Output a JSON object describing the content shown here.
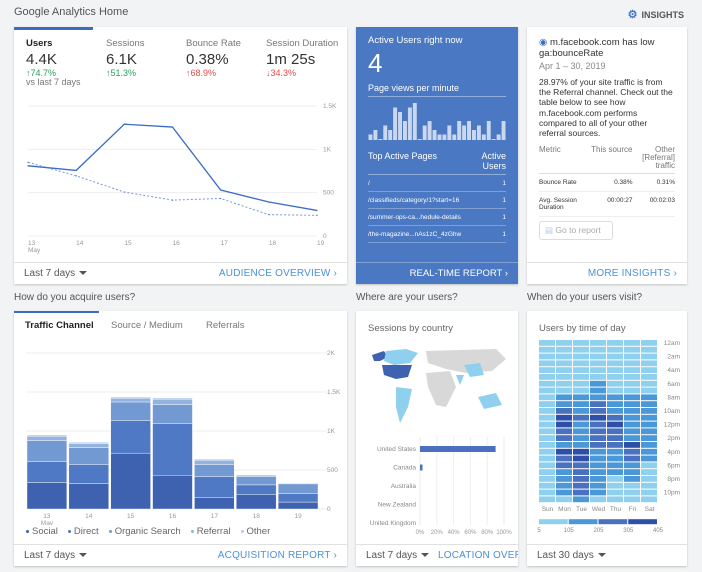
{
  "header": {
    "title": "Google Analytics Home",
    "insights": "INSIGHTS",
    "insights_icon": "insights-icon"
  },
  "overview": {
    "metrics": [
      {
        "label": "Users",
        "value": "4.4K",
        "delta": "↑74.7%",
        "dir": "up"
      },
      {
        "label": "Sessions",
        "value": "6.1K",
        "delta": "↑51.3%",
        "dir": "up"
      },
      {
        "label": "Bounce Rate",
        "value": "0.38%",
        "delta": "↑68.9%",
        "dir": "dn"
      },
      {
        "label": "Session Duration",
        "value": "1m 25s",
        "delta": "↓34.3%",
        "dir": "dn"
      }
    ],
    "compare": "vs last 7 days",
    "footer_left": "Last 7 days",
    "footer_right": "AUDIENCE OVERVIEW",
    "chart_data": {
      "type": "line",
      "x": [
        "13",
        "14",
        "15",
        "16",
        "17",
        "18",
        "19"
      ],
      "x_sublabel": "May",
      "yticks": [
        "1.5K",
        "1K",
        "500",
        "0"
      ],
      "ylim": [
        0,
        1500
      ],
      "grid": true,
      "series": [
        {
          "style": "solid",
          "values": [
            810,
            757,
            1290,
            1257,
            530,
            392,
            295
          ]
        },
        {
          "style": "dotted",
          "values": [
            850,
            694,
            507,
            414,
            433,
            246,
            239
          ]
        }
      ],
      "color": "#3b6cc2"
    }
  },
  "realtime": {
    "title": "Active Users right now",
    "count": "4",
    "pv_title": "Page views per minute",
    "pageviews": [
      1,
      2,
      0,
      3,
      2,
      7,
      6,
      4,
      7,
      8,
      0,
      3,
      4,
      2,
      1,
      1,
      3,
      1,
      4,
      3,
      4,
      2,
      3,
      1,
      4,
      0,
      1,
      4
    ],
    "pages_title": "Top Active Pages",
    "users_title": "Active Users",
    "pages": [
      {
        "path": "/",
        "users": "1"
      },
      {
        "path": "/classifieds/category/1?start=16",
        "users": "1"
      },
      {
        "path": "/summer-ops-ca...hedule-details",
        "users": "1"
      },
      {
        "path": "/the-magazine...nAs1zC_4zGhw",
        "users": "1"
      }
    ],
    "footer": "REAL-TIME REPORT"
  },
  "insight": {
    "headline": "m.facebook.com has low ga:bounceRate",
    "date": "Apr 1 – 30, 2019",
    "body": "28.97% of your site traffic is from the Referral channel. Check out the table below to see how m.facebook.com performs compared to all of your other referral sources.",
    "cols": [
      "Metric",
      "This source",
      "Other [Referral] traffic"
    ],
    "rows": [
      [
        "Bounce Rate",
        "0.38%",
        "0.31%"
      ],
      [
        "Avg. Session Duration",
        "00:00:27",
        "00:02:03"
      ]
    ],
    "button": "Go to report",
    "footer": "MORE INSIGHTS"
  },
  "acquire": {
    "section": "How do you acquire users?",
    "tabs": [
      "Traffic Channel",
      "Source / Medium",
      "Referrals"
    ],
    "footer_left": "Last 7 days",
    "footer_right": "ACQUISITION REPORT",
    "chart_data": {
      "type": "bar",
      "stacked": true,
      "categories": [
        "13",
        "14",
        "15",
        "16",
        "17",
        "18",
        "19"
      ],
      "x_sublabel": "May",
      "yticks": [
        "2K",
        "1.5K",
        "1K",
        "500",
        "0"
      ],
      "ylim": [
        0,
        2000
      ],
      "series": [
        {
          "name": "Social",
          "values": [
            339,
            326,
            716,
            432,
            144,
            182,
            89
          ],
          "color": "#3e62b0"
        },
        {
          "name": "Direct",
          "values": [
            271,
            242,
            419,
            665,
            271,
            127,
            110
          ],
          "color": "#4f79c4"
        },
        {
          "name": "Organic Search",
          "values": [
            267,
            220,
            237,
            242,
            153,
            106,
            123
          ],
          "color": "#7399d3"
        },
        {
          "name": "Referral",
          "values": [
            55,
            52,
            50,
            68,
            58,
            20,
            10
          ],
          "color": "#93b2e0"
        },
        {
          "name": "Other",
          "values": [
            17,
            16,
            14,
            17,
            14,
            5,
            3
          ],
          "color": "#b7cbee"
        }
      ]
    }
  },
  "where": {
    "section": "Where are your users?",
    "title": "Sessions by country",
    "footer_left": "Last 7 days",
    "footer_right": "LOCATION OVERVIEW",
    "chart_data": {
      "type": "bar",
      "orientation": "horizontal",
      "categories": [
        "United States",
        "Canada",
        "Australia",
        "New Zealand",
        "United Kingdom"
      ],
      "values": [
        90,
        3,
        0,
        0,
        0
      ],
      "xticks": [
        "0%",
        "20%",
        "40%",
        "60%",
        "80%",
        "100%"
      ],
      "xlim": [
        0,
        100
      ]
    }
  },
  "when": {
    "section": "When do your users visit?",
    "title": "Users by time of day",
    "footer_left": "Last 30 days",
    "chart_data": {
      "type": "heatmap",
      "days": [
        "Sun",
        "Mon",
        "Tue",
        "Wed",
        "Thu",
        "Fri",
        "Sat"
      ],
      "hour_labels": [
        "12am",
        "2am",
        "4am",
        "6am",
        "8am",
        "10am",
        "12pm",
        "2pm",
        "4pm",
        "6pm",
        "8pm",
        "10pm"
      ],
      "scale": [
        "5",
        "105",
        "205",
        "305",
        "405"
      ],
      "colors": [
        "#8fd0ee",
        "#4a98d8",
        "#4a70c0",
        "#2e4fa8"
      ],
      "values": [
        [
          50,
          50,
          50,
          50,
          50,
          50,
          50
        ],
        [
          50,
          50,
          50,
          50,
          50,
          50,
          50
        ],
        [
          50,
          50,
          50,
          50,
          50,
          50,
          50
        ],
        [
          50,
          50,
          50,
          50,
          50,
          50,
          50
        ],
        [
          50,
          50,
          50,
          50,
          50,
          50,
          50
        ],
        [
          50,
          50,
          50,
          50,
          50,
          50,
          50
        ],
        [
          50,
          50,
          50,
          150,
          50,
          50,
          50
        ],
        [
          50,
          50,
          50,
          150,
          50,
          50,
          50
        ],
        [
          50,
          150,
          150,
          150,
          150,
          150,
          150
        ],
        [
          50,
          150,
          150,
          250,
          150,
          150,
          150
        ],
        [
          50,
          250,
          150,
          250,
          150,
          150,
          150
        ],
        [
          50,
          350,
          250,
          350,
          250,
          150,
          150
        ],
        [
          50,
          350,
          150,
          250,
          350,
          150,
          150
        ],
        [
          50,
          250,
          150,
          250,
          250,
          150,
          150
        ],
        [
          50,
          250,
          150,
          250,
          250,
          150,
          150
        ],
        [
          50,
          150,
          150,
          250,
          250,
          350,
          150
        ],
        [
          50,
          350,
          350,
          150,
          150,
          250,
          150
        ],
        [
          50,
          250,
          350,
          150,
          150,
          250,
          150
        ],
        [
          50,
          250,
          250,
          150,
          150,
          150,
          50
        ],
        [
          50,
          150,
          250,
          150,
          150,
          150,
          50
        ],
        [
          50,
          150,
          250,
          150,
          50,
          150,
          50
        ],
        [
          50,
          150,
          250,
          150,
          50,
          50,
          50
        ],
        [
          50,
          150,
          250,
          150,
          50,
          50,
          50
        ],
        [
          50,
          50,
          150,
          50,
          50,
          50,
          50
        ]
      ]
    }
  }
}
